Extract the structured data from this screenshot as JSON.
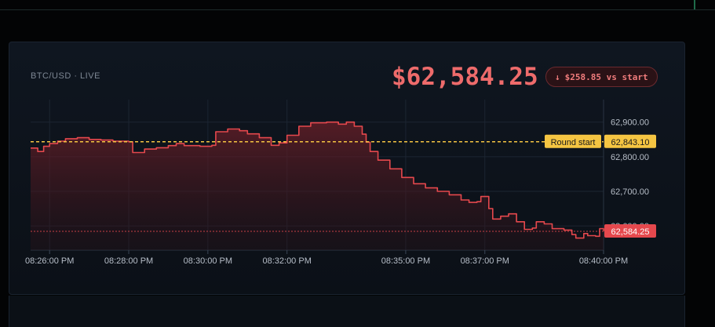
{
  "header": {
    "pair_label": "BTC/USD · LIVE",
    "price": "$62,584.25",
    "delta_text": "$258.85 vs start"
  },
  "colors": {
    "accent_red": "#e5484d",
    "price_red": "#ee6b6b",
    "start_yellow": "#f5c542",
    "background": "#0f1620"
  },
  "chart_data": {
    "type": "area",
    "y_ticks": [
      62600,
      62700,
      62800,
      62900
    ],
    "y_tick_labels": [
      "62,600.00",
      "62,700.00",
      "62,800.00",
      "62,900.00"
    ],
    "ylim": [
      62530,
      62965
    ],
    "x_ticks": [
      {
        "t": 0.0,
        "label": "08:26:00 PM"
      },
      {
        "t": 2.0,
        "label": "08:28:00 PM"
      },
      {
        "t": 4.0,
        "label": "08:30:00 PM"
      },
      {
        "t": 6.0,
        "label": "08:32:00 PM"
      },
      {
        "t": 9.0,
        "label": "08:35:00 PM"
      },
      {
        "t": 11.0,
        "label": "08:37:00 PM"
      },
      {
        "t": 14.0,
        "label": "08:40:00 PM"
      }
    ],
    "xlim": [
      -0.48,
      14.0
    ],
    "start_line": {
      "value": 62843.1,
      "label": "Round start",
      "value_label": "62,843.10"
    },
    "current_line": {
      "value": 62584.25,
      "value_label": "62,584.25"
    },
    "series": [
      {
        "values": [
          [
            -0.48,
            62825
          ],
          [
            -0.3,
            62815
          ],
          [
            -0.15,
            62830
          ],
          [
            0.0,
            62838
          ],
          [
            0.2,
            62845
          ],
          [
            0.4,
            62852
          ],
          [
            0.7,
            62855
          ],
          [
            1.0,
            62850
          ],
          [
            1.3,
            62848
          ],
          [
            1.6,
            62845
          ],
          [
            2.0,
            62843
          ],
          [
            2.1,
            62812
          ],
          [
            2.4,
            62822
          ],
          [
            2.7,
            62826
          ],
          [
            3.0,
            62832
          ],
          [
            3.2,
            62838
          ],
          [
            3.4,
            62832
          ],
          [
            3.8,
            62830
          ],
          [
            4.1,
            62833
          ],
          [
            4.2,
            62872
          ],
          [
            4.5,
            62880
          ],
          [
            4.8,
            62875
          ],
          [
            5.0,
            62866
          ],
          [
            5.3,
            62855
          ],
          [
            5.6,
            62833
          ],
          [
            5.8,
            62840
          ],
          [
            6.0,
            62862
          ],
          [
            6.3,
            62888
          ],
          [
            6.6,
            62898
          ],
          [
            7.0,
            62900
          ],
          [
            7.3,
            62894
          ],
          [
            7.5,
            62900
          ],
          [
            7.7,
            62888
          ],
          [
            7.9,
            62865
          ],
          [
            8.0,
            62842
          ],
          [
            8.1,
            62815
          ],
          [
            8.3,
            62790
          ],
          [
            8.6,
            62765
          ],
          [
            8.9,
            62740
          ],
          [
            9.2,
            62722
          ],
          [
            9.5,
            62710
          ],
          [
            9.8,
            62700
          ],
          [
            10.1,
            62690
          ],
          [
            10.4,
            62675
          ],
          [
            10.6,
            62668
          ],
          [
            10.8,
            62670
          ],
          [
            10.9,
            62685
          ],
          [
            11.1,
            62650
          ],
          [
            11.2,
            62620
          ],
          [
            11.4,
            62628
          ],
          [
            11.6,
            62635
          ],
          [
            11.8,
            62612
          ],
          [
            12.0,
            62590
          ],
          [
            12.2,
            62594
          ],
          [
            12.3,
            62612
          ],
          [
            12.5,
            62606
          ],
          [
            12.7,
            62592
          ],
          [
            13.0,
            62588
          ],
          [
            13.2,
            62575
          ],
          [
            13.3,
            62565
          ],
          [
            13.5,
            62578
          ],
          [
            13.6,
            62572
          ],
          [
            13.8,
            62570
          ],
          [
            13.9,
            62592
          ],
          [
            14.0,
            62585
          ]
        ]
      }
    ]
  }
}
